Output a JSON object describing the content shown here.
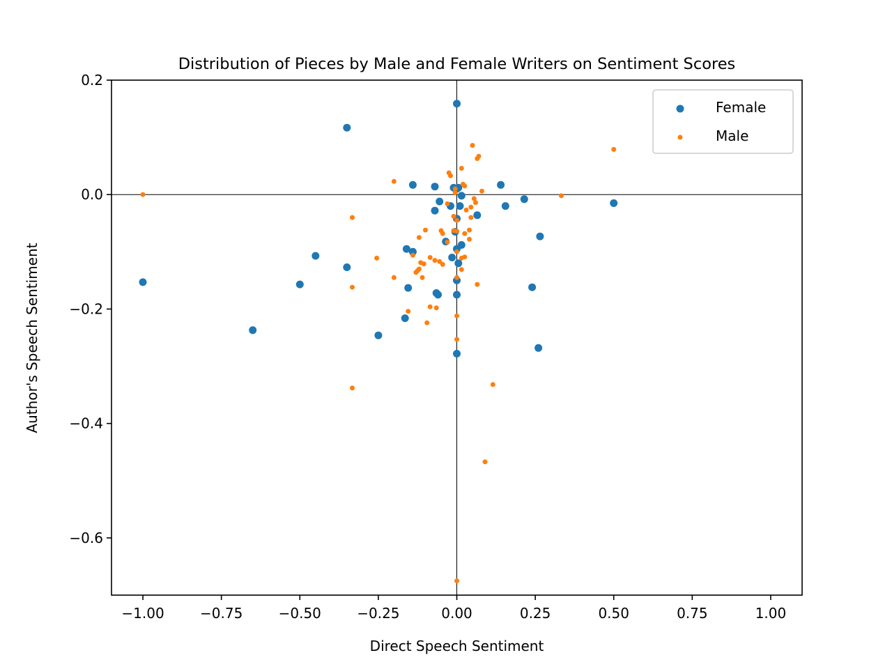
{
  "chart_data": {
    "type": "scatter",
    "title": "Distribution of Pieces by Male and Female Writers on Sentiment Scores",
    "xlabel": "Direct Speech Sentiment",
    "ylabel": "Author's Speech Sentiment",
    "xlim": [
      -1.1,
      1.1
    ],
    "ylim": [
      -0.7,
      0.2
    ],
    "xticks": [
      -1.0,
      -0.75,
      -0.5,
      -0.25,
      0.0,
      0.25,
      0.5,
      0.75,
      1.0
    ],
    "xtick_labels": [
      "−1.00",
      "−0.75",
      "−0.50",
      "−0.25",
      "0.00",
      "0.25",
      "0.50",
      "0.75",
      "1.00"
    ],
    "yticks": [
      0.2,
      0.0,
      -0.2,
      -0.4,
      -0.6
    ],
    "ytick_labels": [
      "0.2",
      "0.0",
      "−0.2",
      "−0.4",
      "−0.6"
    ],
    "reference_lines": {
      "x": 0.0,
      "y": 0.0
    },
    "grid": false,
    "legend_position": "top-right",
    "series": [
      {
        "name": "Female",
        "color": "#1f77b4",
        "marker": "large-dot",
        "points": [
          [
            0.0,
            0.159
          ],
          [
            -0.35,
            0.117
          ],
          [
            -0.14,
            0.017
          ],
          [
            -0.07,
            0.014
          ],
          [
            0.14,
            0.017
          ],
          [
            0.0,
            0.01
          ],
          [
            0.005,
            0.012
          ],
          [
            -0.01,
            0.012
          ],
          [
            0.015,
            -0.002
          ],
          [
            0.215,
            -0.008
          ],
          [
            0.5,
            -0.015
          ],
          [
            0.155,
            -0.02
          ],
          [
            -0.055,
            -0.012
          ],
          [
            -0.02,
            -0.02
          ],
          [
            0.01,
            -0.02
          ],
          [
            -0.07,
            -0.028
          ],
          [
            0.065,
            -0.036
          ],
          [
            0.0,
            -0.042
          ],
          [
            0.265,
            -0.073
          ],
          [
            -0.005,
            -0.065
          ],
          [
            -0.035,
            -0.082
          ],
          [
            0.015,
            -0.088
          ],
          [
            -0.16,
            -0.095
          ],
          [
            -0.14,
            -0.1
          ],
          [
            -0.45,
            -0.107
          ],
          [
            0.0,
            -0.095
          ],
          [
            -0.015,
            -0.11
          ],
          [
            0.005,
            -0.12
          ],
          [
            -0.35,
            -0.127
          ],
          [
            0.0,
            -0.15
          ],
          [
            -1.0,
            -0.153
          ],
          [
            -0.5,
            -0.157
          ],
          [
            -0.155,
            -0.163
          ],
          [
            0.24,
            -0.162
          ],
          [
            -0.065,
            -0.172
          ],
          [
            -0.06,
            -0.175
          ],
          [
            0.0,
            -0.175
          ],
          [
            -0.165,
            -0.216
          ],
          [
            -0.25,
            -0.246
          ],
          [
            -0.65,
            -0.237
          ],
          [
            0.26,
            -0.268
          ],
          [
            0.0,
            -0.278
          ]
        ]
      },
      {
        "name": "Male",
        "color": "#ff7f0e",
        "marker": "small-dot",
        "points": [
          [
            0.05,
            0.086
          ],
          [
            0.5,
            0.079
          ],
          [
            0.07,
            0.067
          ],
          [
            0.065,
            0.063
          ],
          [
            0.015,
            0.046
          ],
          [
            -0.025,
            0.038
          ],
          [
            -0.02,
            0.033
          ],
          [
            -0.2,
            0.023
          ],
          [
            0.02,
            0.018
          ],
          [
            0.025,
            0.015
          ],
          [
            -0.005,
            0.01
          ],
          [
            0.08,
            0.006
          ],
          [
            -1.0,
            0.0
          ],
          [
            0.333,
            -0.002
          ],
          [
            -0.005,
            0.003
          ],
          [
            0.055,
            -0.007
          ],
          [
            0.06,
            -0.014
          ],
          [
            -0.03,
            -0.016
          ],
          [
            0.045,
            -0.022
          ],
          [
            0.03,
            -0.027
          ],
          [
            -0.01,
            -0.038
          ],
          [
            0.045,
            -0.04
          ],
          [
            -0.333,
            -0.04
          ],
          [
            0.0,
            -0.045
          ],
          [
            -0.045,
            -0.068
          ],
          [
            0.025,
            -0.068
          ],
          [
            -0.1,
            -0.062
          ],
          [
            -0.05,
            -0.063
          ],
          [
            0.04,
            -0.062
          ],
          [
            -0.01,
            -0.063
          ],
          [
            0.0,
            -0.064
          ],
          [
            0.04,
            -0.078
          ],
          [
            -0.12,
            -0.075
          ],
          [
            -0.03,
            -0.083
          ],
          [
            0.0,
            -0.1
          ],
          [
            -0.14,
            -0.106
          ],
          [
            -0.085,
            -0.11
          ],
          [
            0.025,
            -0.109
          ],
          [
            0.015,
            -0.111
          ],
          [
            -0.255,
            -0.111
          ],
          [
            -0.07,
            -0.115
          ],
          [
            -0.055,
            -0.117
          ],
          [
            -0.115,
            -0.119
          ],
          [
            -0.105,
            -0.121
          ],
          [
            -0.045,
            -0.122
          ],
          [
            -0.12,
            -0.13
          ],
          [
            -0.125,
            -0.133
          ],
          [
            0.015,
            -0.131
          ],
          [
            -0.13,
            -0.136
          ],
          [
            -0.2,
            -0.145
          ],
          [
            -0.11,
            -0.145
          ],
          [
            0.0,
            -0.145
          ],
          [
            -0.333,
            -0.162
          ],
          [
            0.065,
            -0.157
          ],
          [
            -0.085,
            -0.196
          ],
          [
            -0.065,
            -0.198
          ],
          [
            -0.155,
            -0.204
          ],
          [
            0.0,
            -0.212
          ],
          [
            -0.095,
            -0.224
          ],
          [
            0.0,
            -0.253
          ],
          [
            0.115,
            -0.332
          ],
          [
            -0.333,
            -0.338
          ],
          [
            0.09,
            -0.467
          ],
          [
            0.0,
            -0.675
          ]
        ]
      }
    ]
  }
}
